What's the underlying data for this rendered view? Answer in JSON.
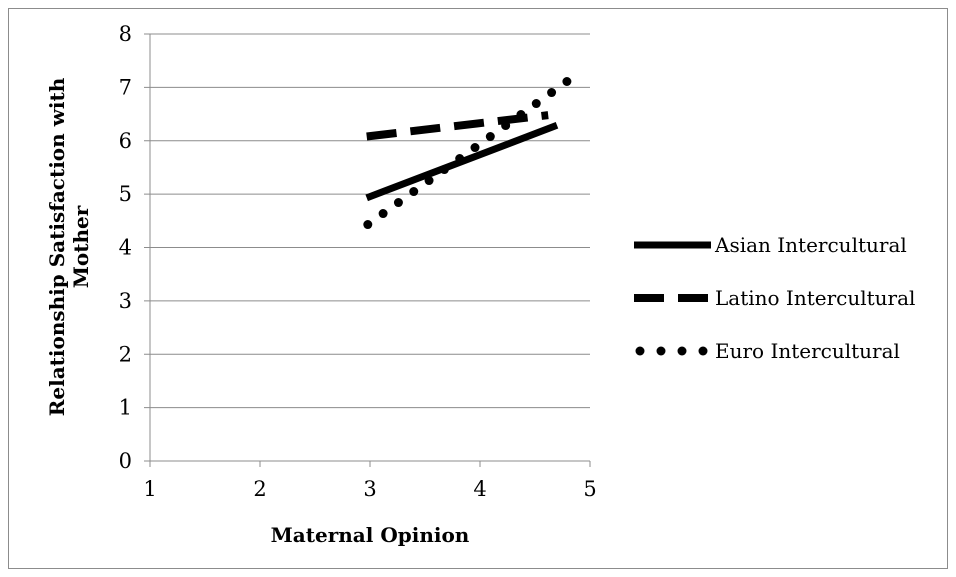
{
  "chart_data": {
    "type": "line",
    "title": "",
    "xlabel": "Maternal Opinion",
    "ylabel_lines": [
      "Relationship Satisfaction with",
      "Mother"
    ],
    "xlim": [
      1,
      5
    ],
    "ylim": [
      0,
      8
    ],
    "xticks": [
      1,
      2,
      3,
      4,
      5
    ],
    "yticks": [
      0,
      1,
      2,
      3,
      4,
      5,
      6,
      7,
      8
    ],
    "grid": "horizontal",
    "legend_position": "right",
    "series": [
      {
        "name": "Asian Intercultural",
        "style": "solid",
        "color": "#000000",
        "x": [
          2.97,
          4.7
        ],
        "y": [
          4.93,
          6.29
        ]
      },
      {
        "name": "Latino Intercultural",
        "style": "dashed",
        "color": "#000000",
        "x": [
          2.97,
          4.62
        ],
        "y": [
          6.08,
          6.48
        ]
      },
      {
        "name": "Euro Intercultural",
        "style": "dotted",
        "color": "#000000",
        "x": [
          2.98,
          4.79
        ],
        "y": [
          4.43,
          7.11
        ]
      }
    ]
  }
}
